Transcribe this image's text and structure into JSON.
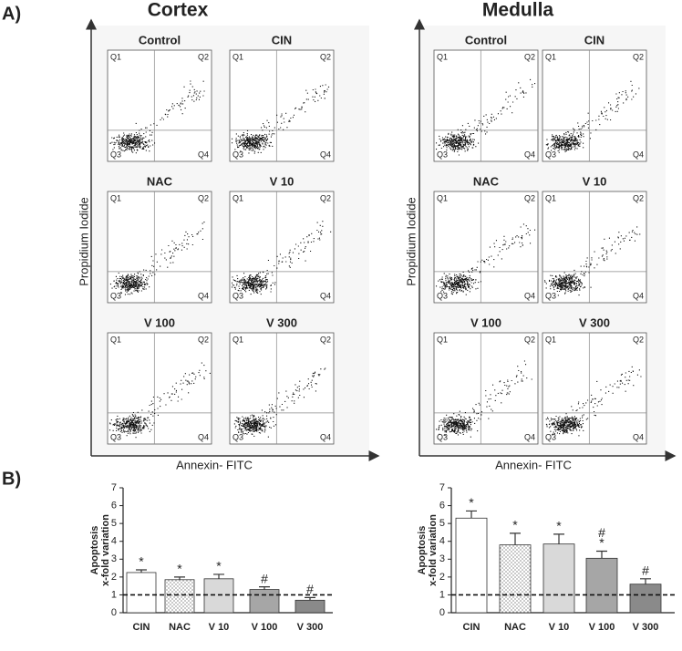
{
  "panel_a": {
    "label": "A)",
    "x_label": "Annexin- FITC",
    "y_label": "Propidium Iodide",
    "quadrant_labels": [
      "Q1",
      "Q2",
      "Q3",
      "Q4"
    ],
    "groups": [
      {
        "title": "Cortex",
        "plots": [
          "Control",
          "CIN",
          "NAC",
          "V 10",
          "V 100",
          "V 300"
        ]
      },
      {
        "title": "Medulla",
        "plots": [
          "Control",
          "CIN",
          "NAC",
          "V 10",
          "V 100",
          "V 300"
        ]
      }
    ]
  },
  "panel_b_label": "B)",
  "chart_data": [
    {
      "type": "bar",
      "ylabel": [
        "Apoptosis",
        "x-fold variation"
      ],
      "categories": [
        "CIN",
        "NAC",
        "V 10",
        "V 100",
        "V 300"
      ],
      "values": [
        2.25,
        1.85,
        1.9,
        1.3,
        0.7
      ],
      "errors": [
        0.15,
        0.15,
        0.25,
        0.15,
        0.15
      ],
      "annotations": [
        [
          "*"
        ],
        [
          "*"
        ],
        [
          "*"
        ],
        [
          "#"
        ],
        [
          "#"
        ]
      ],
      "colors": [
        "#ffffff",
        "#ffffff",
        "#d9d9d9",
        "#a6a6a6",
        "#8a8a8a"
      ],
      "patterns": [
        null,
        "dots",
        null,
        null,
        null
      ],
      "reference_line": 1,
      "ylim": [
        0,
        7
      ],
      "yticks": [
        0,
        1,
        2,
        3,
        4,
        5,
        6,
        7
      ]
    },
    {
      "type": "bar",
      "ylabel": [
        "Apoptosis",
        "x-fold variation"
      ],
      "categories": [
        "CIN",
        "NAC",
        "V 10",
        "V 100",
        "V 300"
      ],
      "values": [
        5.3,
        3.8,
        3.85,
        3.05,
        1.6
      ],
      "errors": [
        0.4,
        0.65,
        0.55,
        0.4,
        0.3
      ],
      "annotations": [
        [
          "*"
        ],
        [
          "*"
        ],
        [
          "*"
        ],
        [
          "#",
          "*"
        ],
        [
          "#"
        ]
      ],
      "colors": [
        "#ffffff",
        "#ffffff",
        "#d9d9d9",
        "#a6a6a6",
        "#8a8a8a"
      ],
      "patterns": [
        null,
        "dots",
        null,
        null,
        null
      ],
      "reference_line": 1,
      "ylim": [
        0,
        7
      ],
      "yticks": [
        0,
        1,
        2,
        3,
        4,
        5,
        6,
        7
      ]
    }
  ]
}
